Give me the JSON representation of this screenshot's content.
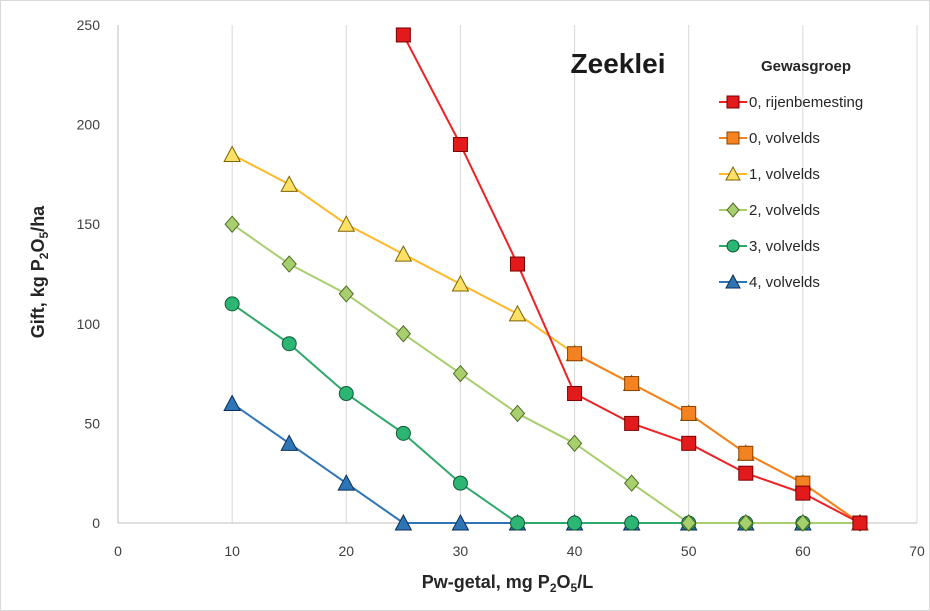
{
  "chart_data": {
    "type": "line",
    "title": "Zeeklei",
    "xlabel": {
      "pre": "Pw-getal, mg P",
      "sub1": "2",
      "mid": "O",
      "sub2": "5",
      "post": "/L"
    },
    "ylabel": {
      "pre": "Gift, kg P",
      "sub1": "2",
      "mid": "O",
      "sub2": "5",
      "post": "/ha"
    },
    "xlim": [
      0,
      70
    ],
    "ylim": [
      0,
      250
    ],
    "xticks": [
      0,
      10,
      20,
      30,
      40,
      50,
      60,
      70
    ],
    "yticks": [
      0,
      50,
      100,
      150,
      200,
      250
    ],
    "grid": "vertical",
    "legend_title": "Gewasgroep",
    "legend_position": "top-right",
    "series": [
      {
        "name": "0, rijenbemesting",
        "line_color": "#ed2224",
        "marker": "square",
        "marker_fill": "#e31a1c",
        "marker_stroke": "#7a0000",
        "x": [
          25,
          30,
          35,
          40,
          45,
          50,
          55,
          60,
          65
        ],
        "y": [
          245,
          190,
          130,
          65,
          50,
          40,
          25,
          15,
          0
        ]
      },
      {
        "name": "0, volvelds",
        "line_color": "#f58220",
        "marker": "square",
        "marker_fill": "#f58220",
        "marker_stroke": "#8a4300",
        "x": [
          40,
          45,
          50,
          55,
          60,
          65
        ],
        "y": [
          85,
          70,
          55,
          35,
          20,
          0
        ]
      },
      {
        "name": "1, volvelds",
        "line_color": "#fdb927",
        "marker": "triangle",
        "marker_fill": "#ffe066",
        "marker_stroke": "#7a6400",
        "x": [
          10,
          15,
          20,
          25,
          30,
          35,
          40,
          45,
          50,
          55,
          60,
          65
        ],
        "y": [
          185,
          170,
          150,
          135,
          120,
          105,
          85,
          70,
          55,
          35,
          20,
          0
        ]
      },
      {
        "name": "2, volvelds",
        "line_color": "#a8cf6e",
        "marker": "diamond",
        "marker_fill": "#a8cf6e",
        "marker_stroke": "#4e6b23",
        "x": [
          10,
          15,
          20,
          25,
          30,
          35,
          40,
          45,
          50,
          55,
          60,
          65
        ],
        "y": [
          150,
          130,
          115,
          95,
          75,
          55,
          40,
          20,
          0,
          0,
          0,
          0
        ]
      },
      {
        "name": "3, volvelds",
        "line_color": "#2ea86b",
        "marker": "circle",
        "marker_fill": "#2bb673",
        "marker_stroke": "#0f5a35",
        "x": [
          10,
          15,
          20,
          25,
          30,
          35,
          40,
          45,
          50,
          55,
          60,
          65
        ],
        "y": [
          110,
          90,
          65,
          45,
          20,
          0,
          0,
          0,
          0,
          0,
          0,
          0
        ]
      },
      {
        "name": "4, volvelds",
        "line_color": "#2e75b6",
        "marker": "triangle",
        "marker_fill": "#2e75b6",
        "marker_stroke": "#0b2e55",
        "x": [
          10,
          15,
          20,
          25,
          30,
          35,
          40,
          45,
          50,
          55,
          60,
          65
        ],
        "y": [
          60,
          40,
          20,
          0,
          0,
          0,
          0,
          0,
          0,
          0,
          0,
          0
        ]
      }
    ]
  }
}
